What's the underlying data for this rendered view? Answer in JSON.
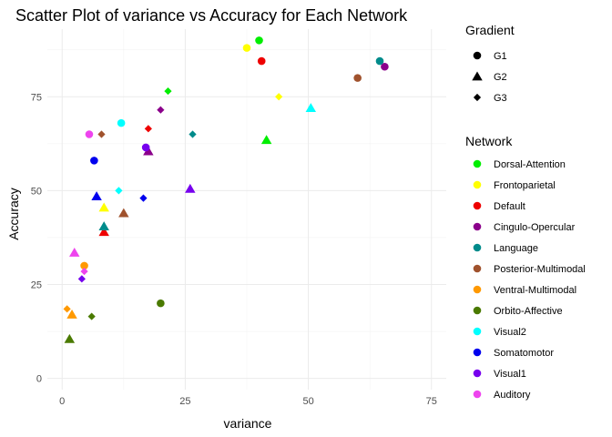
{
  "chart_data": {
    "type": "scatter",
    "title": "Scatter Plot of variance vs Accuracy for Each Network",
    "xlabel": "variance",
    "ylabel": "Accuracy",
    "xlim": [
      -3,
      78
    ],
    "ylim": [
      -3,
      93
    ],
    "x_ticks": [
      0,
      25,
      50,
      75
    ],
    "y_ticks": [
      0,
      25,
      50,
      75
    ],
    "x_tick_labels": [
      "0",
      "25",
      "50",
      "75"
    ],
    "y_tick_labels": [
      "0",
      "25",
      "50",
      "75"
    ],
    "grid": true,
    "legend_placement": "right",
    "shape_legend": {
      "title": "Gradient",
      "items": [
        {
          "label": "G1",
          "shape": "circle"
        },
        {
          "label": "G2",
          "shape": "triangle"
        },
        {
          "label": "G3",
          "shape": "diamond"
        }
      ]
    },
    "color_legend": {
      "title": "Network",
      "items": [
        {
          "label": "Dorsal-Attention",
          "color": "#00ee00"
        },
        {
          "label": "Frontoparietal",
          "color": "#ffff00"
        },
        {
          "label": "Default",
          "color": "#ee0000"
        },
        {
          "label": "Cingulo-Opercular",
          "color": "#8b008b"
        },
        {
          "label": "Language",
          "color": "#008b8b"
        },
        {
          "label": "Posterior-Multimodal",
          "color": "#a0522d"
        },
        {
          "label": "Ventral-Multimodal",
          "color": "#ff9900"
        },
        {
          "label": "Orbito-Affective",
          "color": "#4a7a00"
        },
        {
          "label": "Visual2",
          "color": "#00ffff"
        },
        {
          "label": "Somatomotor",
          "color": "#0000ee"
        },
        {
          "label": "Visual1",
          "color": "#7700ee"
        },
        {
          "label": "Auditory",
          "color": "#ee44ee"
        }
      ]
    },
    "series": [
      {
        "network": "Dorsal-Attention",
        "points": [
          {
            "x": 40,
            "y": 90,
            "gradient": "G1"
          },
          {
            "x": 41.5,
            "y": 63.5,
            "gradient": "G2"
          },
          {
            "x": 21.5,
            "y": 76.5,
            "gradient": "G3"
          }
        ]
      },
      {
        "network": "Frontoparietal",
        "points": [
          {
            "x": 37.5,
            "y": 88,
            "gradient": "G1"
          },
          {
            "x": 8.5,
            "y": 45.5,
            "gradient": "G2"
          },
          {
            "x": 44,
            "y": 75,
            "gradient": "G3"
          }
        ]
      },
      {
        "network": "Default",
        "points": [
          {
            "x": 40.5,
            "y": 84.5,
            "gradient": "G1"
          },
          {
            "x": 8.5,
            "y": 39,
            "gradient": "G2"
          },
          {
            "x": 17.5,
            "y": 66.5,
            "gradient": "G3"
          }
        ]
      },
      {
        "network": "Cingulo-Opercular",
        "points": [
          {
            "x": 65.5,
            "y": 83,
            "gradient": "G1"
          },
          {
            "x": 17.5,
            "y": 60.5,
            "gradient": "G2"
          },
          {
            "x": 20,
            "y": 71.5,
            "gradient": "G3"
          }
        ]
      },
      {
        "network": "Language",
        "points": [
          {
            "x": 64.5,
            "y": 84.5,
            "gradient": "G1"
          },
          {
            "x": 8.5,
            "y": 40.5,
            "gradient": "G2"
          },
          {
            "x": 26.5,
            "y": 65,
            "gradient": "G3"
          }
        ]
      },
      {
        "network": "Posterior-Multimodal",
        "points": [
          {
            "x": 60,
            "y": 80,
            "gradient": "G1"
          },
          {
            "x": 12.5,
            "y": 44,
            "gradient": "G2"
          },
          {
            "x": 8,
            "y": 65,
            "gradient": "G3"
          }
        ]
      },
      {
        "network": "Ventral-Multimodal",
        "points": [
          {
            "x": 4.5,
            "y": 30,
            "gradient": "G1"
          },
          {
            "x": 2,
            "y": 17,
            "gradient": "G2"
          },
          {
            "x": 1,
            "y": 18.5,
            "gradient": "G3"
          }
        ]
      },
      {
        "network": "Orbito-Affective",
        "points": [
          {
            "x": 20,
            "y": 20,
            "gradient": "G1"
          },
          {
            "x": 1.5,
            "y": 10.5,
            "gradient": "G2"
          },
          {
            "x": 6,
            "y": 16.5,
            "gradient": "G3"
          }
        ]
      },
      {
        "network": "Visual2",
        "points": [
          {
            "x": 12,
            "y": 68,
            "gradient": "G1"
          },
          {
            "x": 50.5,
            "y": 72,
            "gradient": "G2"
          },
          {
            "x": 11.5,
            "y": 50,
            "gradient": "G3"
          }
        ]
      },
      {
        "network": "Somatomotor",
        "points": [
          {
            "x": 6.5,
            "y": 58,
            "gradient": "G1"
          },
          {
            "x": 7,
            "y": 48.5,
            "gradient": "G2"
          },
          {
            "x": 16.5,
            "y": 48,
            "gradient": "G3"
          }
        ]
      },
      {
        "network": "Visual1",
        "points": [
          {
            "x": 17,
            "y": 61.5,
            "gradient": "G1"
          },
          {
            "x": 26,
            "y": 50.5,
            "gradient": "G2"
          },
          {
            "x": 4,
            "y": 26.5,
            "gradient": "G3"
          }
        ]
      },
      {
        "network": "Auditory",
        "points": [
          {
            "x": 5.5,
            "y": 65,
            "gradient": "G1"
          },
          {
            "x": 2.5,
            "y": 33.5,
            "gradient": "G2"
          },
          {
            "x": 4.5,
            "y": 28.5,
            "gradient": "G3"
          }
        ]
      }
    ]
  }
}
